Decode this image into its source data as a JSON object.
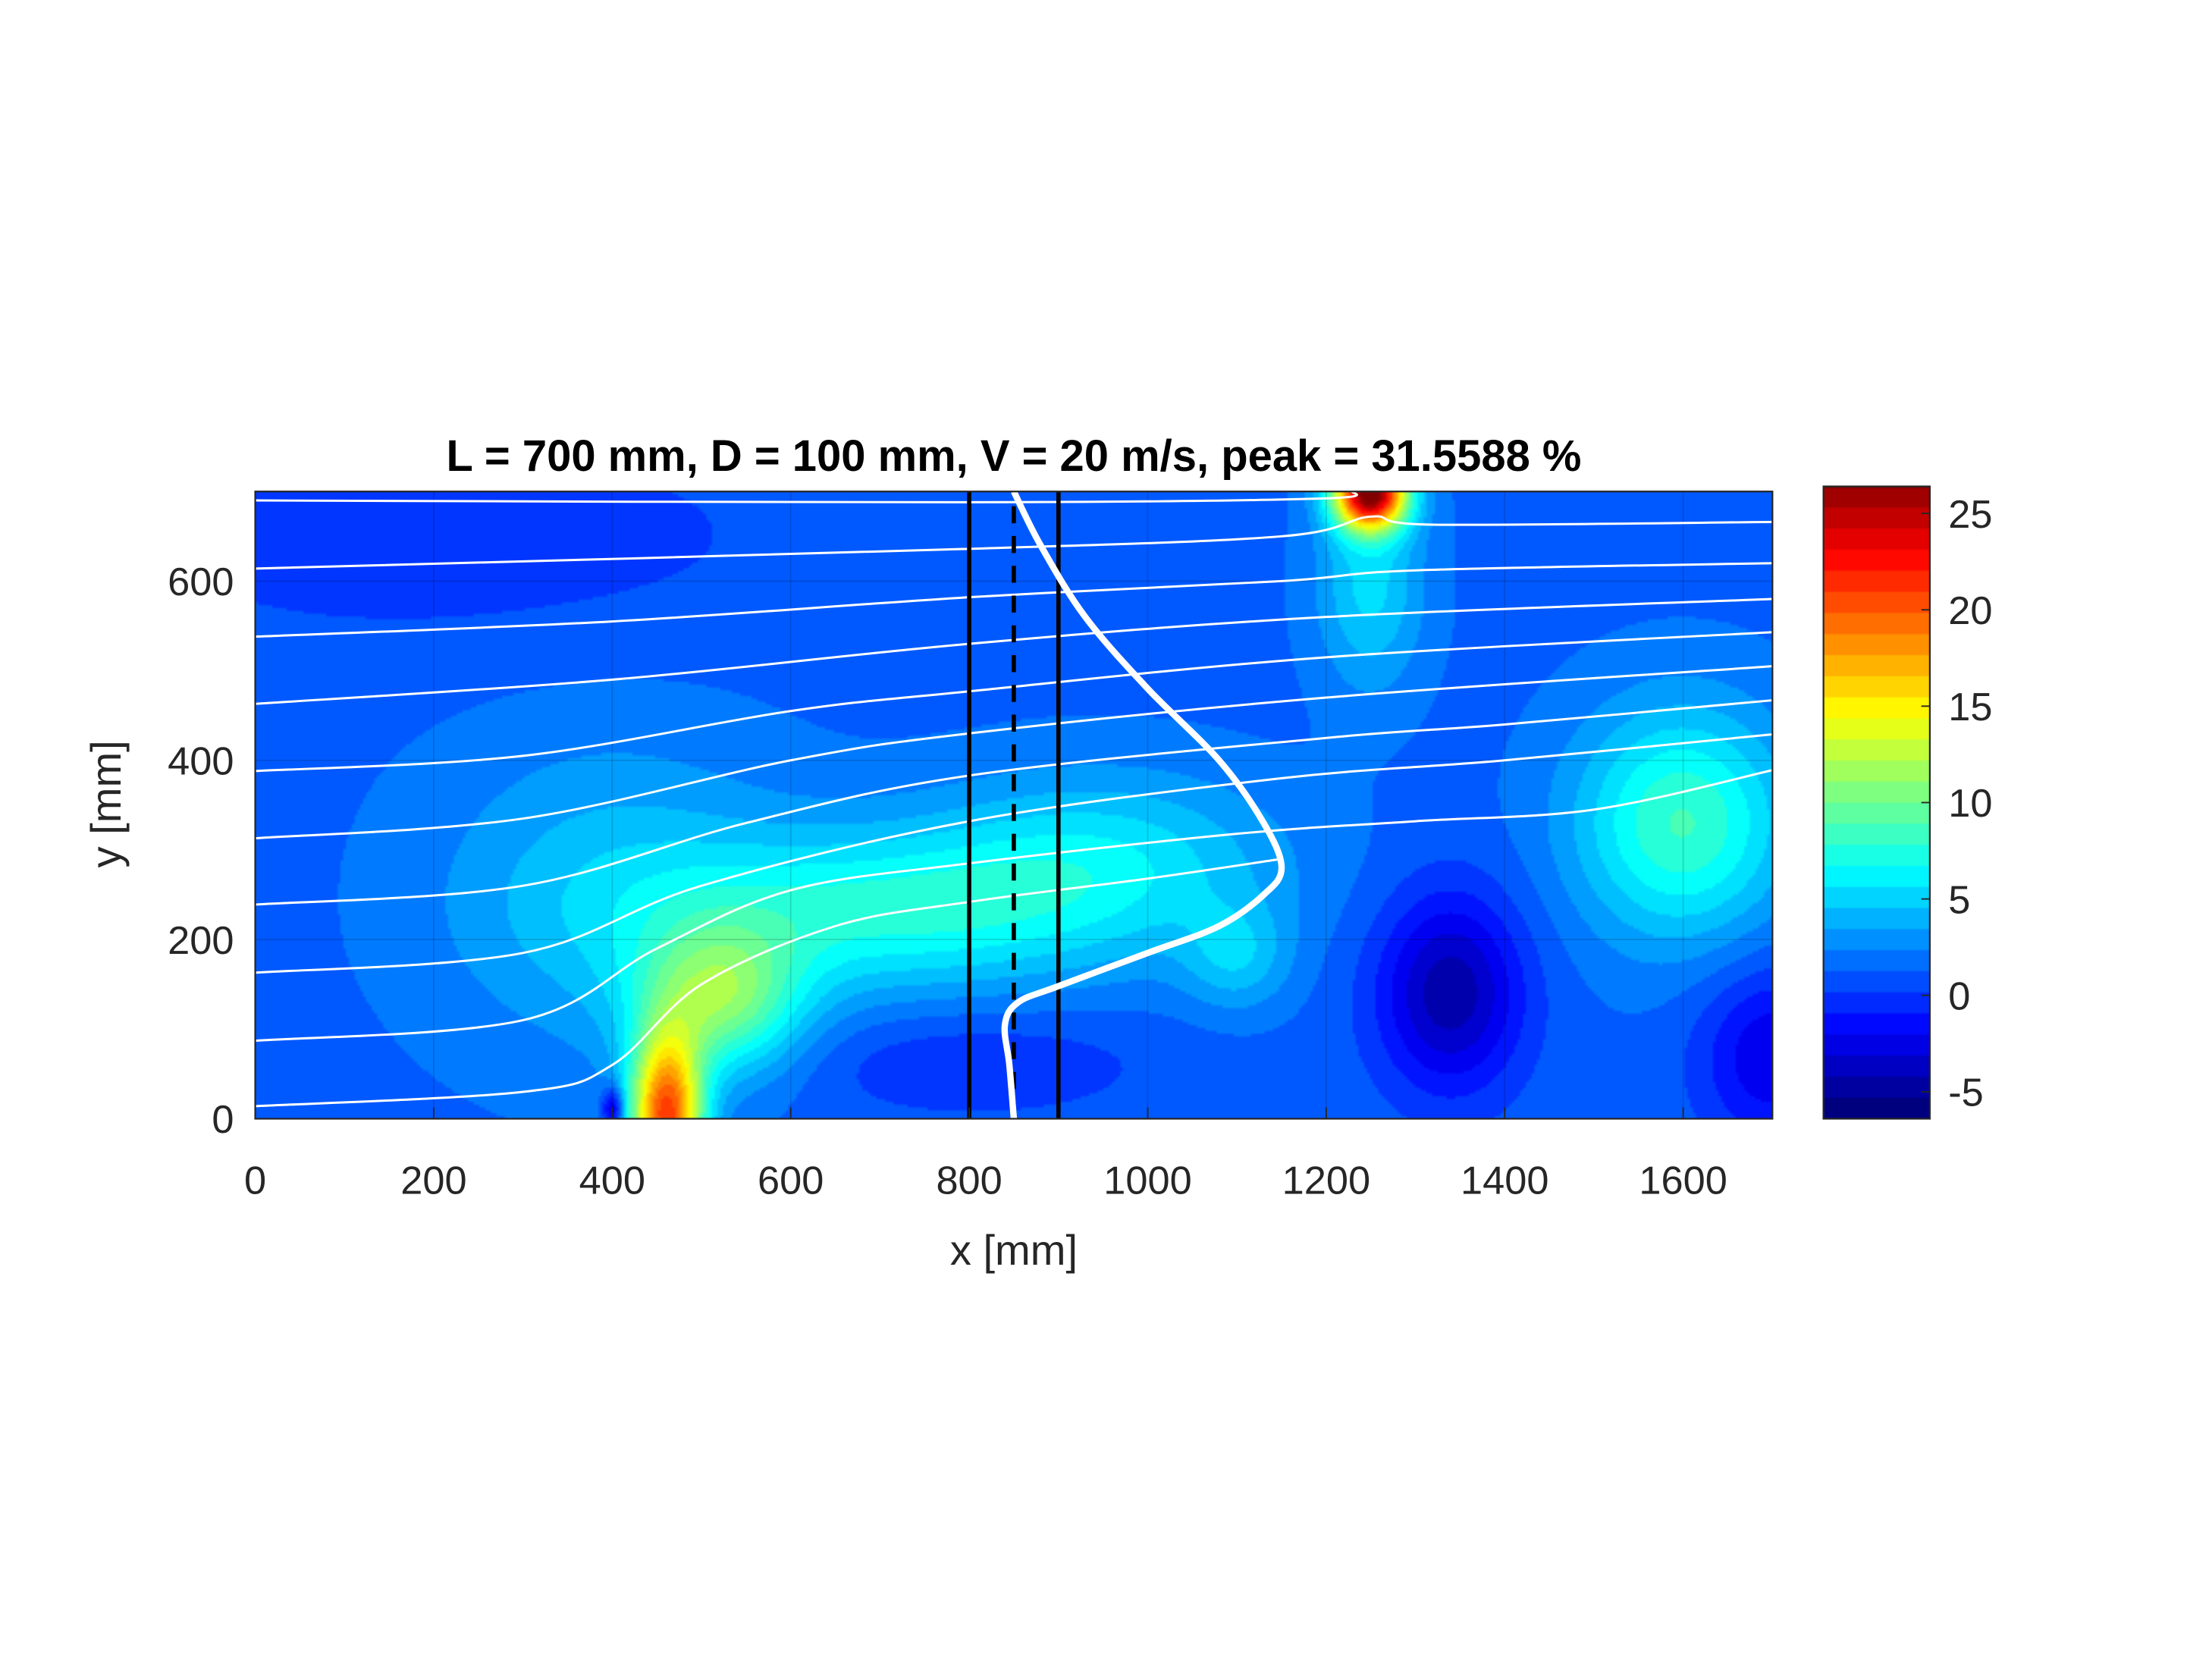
{
  "chart_data": {
    "type": "heatmap",
    "title": "L = 700 mm, D = 100 mm, V = 20 m/s, peak = 31.5588 %",
    "xlabel": "x [mm]",
    "ylabel": "y [mm]",
    "xlim": [
      0,
      1700
    ],
    "ylim": [
      0,
      700
    ],
    "xticks": [
      0,
      200,
      400,
      600,
      800,
      1000,
      1200,
      1400,
      1600
    ],
    "xtick_labels": [
      "0",
      "200",
      "400",
      "600",
      "800",
      "1000",
      "1200",
      "1400",
      "1600"
    ],
    "yticks": [
      0,
      200,
      400,
      600
    ],
    "ytick_labels": [
      "0",
      "200",
      "400",
      "600"
    ],
    "grid": true,
    "colormap": "jet",
    "colorbar": {
      "range": [
        -6.4,
        26.4
      ],
      "ticks": [
        -5,
        0,
        5,
        10,
        15,
        20,
        25
      ],
      "tick_labels": [
        "-5",
        "0",
        "5",
        "10",
        "15",
        "20",
        "25"
      ]
    },
    "field": {
      "base": 0.8,
      "features": [
        {
          "x": 460,
          "y": 0,
          "sx": 40,
          "sy": 90,
          "v": 19
        },
        {
          "x": 520,
          "y": 130,
          "sx": 90,
          "sy": 80,
          "v": 8
        },
        {
          "x": 700,
          "y": 230,
          "sx": 260,
          "sy": 90,
          "v": 5.5
        },
        {
          "x": 950,
          "y": 290,
          "sx": 200,
          "sy": 100,
          "v": 4
        },
        {
          "x": 400,
          "y": 250,
          "sx": 200,
          "sy": 180,
          "v": 3
        },
        {
          "x": 1250,
          "y": 700,
          "sx": 40,
          "sy": 40,
          "v": 25
        },
        {
          "x": 1250,
          "y": 600,
          "sx": 60,
          "sy": 120,
          "v": 4
        },
        {
          "x": 1600,
          "y": 330,
          "sx": 120,
          "sy": 130,
          "v": 7
        },
        {
          "x": 1100,
          "y": 180,
          "sx": 60,
          "sy": 60,
          "v": 3
        },
        {
          "x": 1340,
          "y": 140,
          "sx": 80,
          "sy": 110,
          "v": -6
        },
        {
          "x": 1700,
          "y": 70,
          "sx": 80,
          "sy": 100,
          "v": -4
        },
        {
          "x": 400,
          "y": 10,
          "sx": 12,
          "sy": 25,
          "v": -6
        },
        {
          "x": 800,
          "y": 60,
          "sx": 200,
          "sy": 60,
          "v": -1.8
        },
        {
          "x": 200,
          "y": 650,
          "sx": 400,
          "sy": 120,
          "v": -1.5
        }
      ]
    },
    "streamlines": [
      [
        [
          0,
          690
        ],
        [
          800,
          688
        ],
        [
          1190,
          692
        ],
        [
          1230,
          700
        ]
      ],
      [
        [
          0,
          614
        ],
        [
          800,
          636
        ],
        [
          1150,
          650
        ],
        [
          1250,
          672
        ],
        [
          1320,
          663
        ],
        [
          1700,
          666
        ]
      ],
      [
        [
          0,
          538
        ],
        [
          400,
          555
        ],
        [
          800,
          582
        ],
        [
          1150,
          600
        ],
        [
          1300,
          612
        ],
        [
          1700,
          620
        ]
      ],
      [
        [
          0,
          463
        ],
        [
          400,
          490
        ],
        [
          800,
          530
        ],
        [
          1200,
          560
        ],
        [
          1700,
          580
        ]
      ],
      [
        [
          0,
          388
        ],
        [
          300,
          405
        ],
        [
          600,
          455
        ],
        [
          800,
          477
        ],
        [
          1200,
          515
        ],
        [
          1700,
          543
        ]
      ],
      [
        [
          0,
          313
        ],
        [
          300,
          335
        ],
        [
          600,
          400
        ],
        [
          800,
          430
        ],
        [
          1200,
          470
        ],
        [
          1700,
          505
        ]
      ],
      [
        [
          0,
          239
        ],
        [
          300,
          260
        ],
        [
          550,
          330
        ],
        [
          800,
          383
        ],
        [
          1200,
          425
        ],
        [
          1400,
          440
        ],
        [
          1700,
          467
        ]
      ],
      [
        [
          0,
          163
        ],
        [
          300,
          185
        ],
        [
          500,
          260
        ],
        [
          800,
          332
        ],
        [
          1150,
          380
        ],
        [
          1400,
          400
        ],
        [
          1700,
          429
        ]
      ],
      [
        [
          0,
          87
        ],
        [
          300,
          110
        ],
        [
          450,
          190
        ],
        [
          600,
          255
        ],
        [
          800,
          285
        ],
        [
          1100,
          318
        ],
        [
          1300,
          332
        ],
        [
          1500,
          345
        ],
        [
          1700,
          389
        ]
      ],
      [
        [
          0,
          14
        ],
        [
          300,
          30
        ],
        [
          400,
          60
        ],
        [
          500,
          150
        ],
        [
          650,
          215
        ],
        [
          800,
          242
        ],
        [
          1000,
          268
        ],
        [
          1150,
          290
        ]
      ]
    ],
    "profile": [
      [
        850,
        0
      ],
      [
        845,
        60
      ],
      [
        840,
        105
      ],
      [
        855,
        130
      ],
      [
        900,
        148
      ],
      [
        1000,
        185
      ],
      [
        1080,
        215
      ],
      [
        1130,
        250
      ],
      [
        1150,
        280
      ],
      [
        1130,
        330
      ],
      [
        1080,
        400
      ],
      [
        1000,
        480
      ],
      [
        930,
        560
      ],
      [
        880,
        640
      ],
      [
        850,
        700
      ]
    ],
    "vertical_lines": [
      {
        "x": 800,
        "style": "solid"
      },
      {
        "x": 850,
        "style": "dashed"
      },
      {
        "x": 900,
        "style": "solid"
      }
    ]
  }
}
